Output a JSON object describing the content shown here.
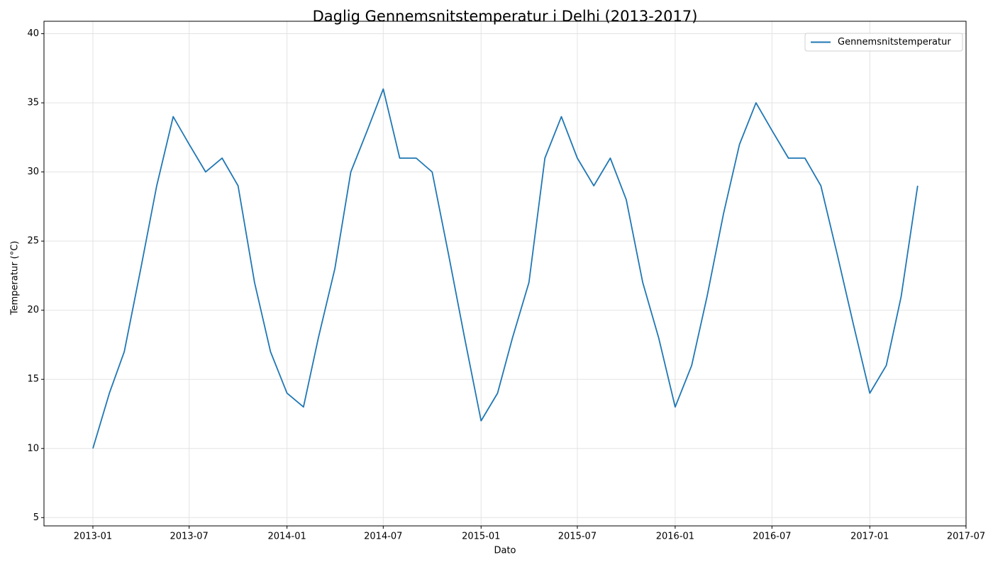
{
  "chart_data": {
    "type": "line",
    "title": "Daglig Gennemsnitstemperatur i Delhi (2013-2017)",
    "x_label": "Dato",
    "y_label": "Temperatur (°C)",
    "x": [
      "2013-01",
      "2013-02",
      "2013-03",
      "2013-04",
      "2013-05",
      "2013-06",
      "2013-07",
      "2013-08",
      "2013-09",
      "2013-10",
      "2013-11",
      "2013-12",
      "2014-01",
      "2014-02",
      "2014-03",
      "2014-04",
      "2014-05",
      "2014-06",
      "2014-07",
      "2014-08",
      "2014-09",
      "2014-10",
      "2014-11",
      "2014-12",
      "2015-01",
      "2015-02",
      "2015-03",
      "2015-04",
      "2015-05",
      "2015-06",
      "2015-07",
      "2015-08",
      "2015-09",
      "2015-10",
      "2015-11",
      "2015-12",
      "2016-01",
      "2016-02",
      "2016-03",
      "2016-04",
      "2016-05",
      "2016-06",
      "2016-07",
      "2016-08",
      "2016-09",
      "2016-10",
      "2016-11",
      "2016-12",
      "2017-01",
      "2017-02",
      "2017-03",
      "2017-04"
    ],
    "series": [
      {
        "name": "Gennemsnitstemperatur",
        "color": "#1f77b4",
        "values": [
          10,
          14,
          17,
          23,
          29,
          34,
          32,
          30,
          31,
          29,
          22,
          17,
          14,
          13,
          18,
          23,
          30,
          33,
          36,
          31,
          31,
          30,
          24,
          18,
          12,
          14,
          18,
          22,
          31,
          34,
          31,
          29,
          31,
          28,
          22,
          18,
          13,
          16,
          21,
          27,
          32,
          35,
          33,
          31,
          31,
          29,
          24,
          19,
          14,
          16,
          21,
          29
        ]
      }
    ],
    "xlim": [
      "2012-10",
      "2017-07"
    ],
    "xticks": [
      "2013-01",
      "2013-07",
      "2014-01",
      "2014-07",
      "2015-01",
      "2015-07",
      "2016-01",
      "2016-07",
      "2017-01",
      "2017-07"
    ],
    "ylim": [
      4.4,
      40.9
    ],
    "yticks": [
      5,
      10,
      15,
      20,
      25,
      30,
      35,
      40
    ],
    "grid": true,
    "legend": "upper-right"
  }
}
